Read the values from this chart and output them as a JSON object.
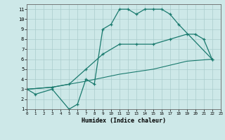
{
  "line1_x": [
    0,
    1,
    3,
    5,
    6,
    7,
    8,
    9,
    10,
    11,
    12,
    13,
    14,
    15,
    16,
    17,
    18,
    22
  ],
  "line1_y": [
    3,
    2.5,
    3,
    1,
    1.5,
    4,
    3.5,
    9,
    9.5,
    11,
    11,
    10.5,
    11,
    11,
    11,
    10.5,
    9.5,
    6
  ],
  "line2_x": [
    0,
    3,
    5,
    7,
    9,
    11,
    13,
    15,
    17,
    19,
    20,
    21,
    22
  ],
  "line2_y": [
    3,
    3.2,
    3.5,
    5,
    6.5,
    7.5,
    7.5,
    7.5,
    8,
    8.5,
    8.5,
    8,
    6
  ],
  "line3_x": [
    0,
    3,
    7,
    11,
    15,
    19,
    22
  ],
  "line3_y": [
    3,
    3.2,
    3.8,
    4.5,
    5.0,
    5.8,
    6
  ],
  "line_color": "#1a7a6e",
  "bg_color": "#cde8e8",
  "grid_color": "#aacccc",
  "xlabel": "Humidex (Indice chaleur)",
  "xlim": [
    0,
    23
  ],
  "ylim": [
    1,
    11.5
  ],
  "xticks": [
    0,
    1,
    2,
    3,
    4,
    5,
    6,
    7,
    8,
    9,
    10,
    11,
    12,
    13,
    14,
    15,
    16,
    17,
    18,
    19,
    20,
    21,
    22,
    23
  ],
  "yticks": [
    1,
    2,
    3,
    4,
    5,
    6,
    7,
    8,
    9,
    10,
    11
  ]
}
